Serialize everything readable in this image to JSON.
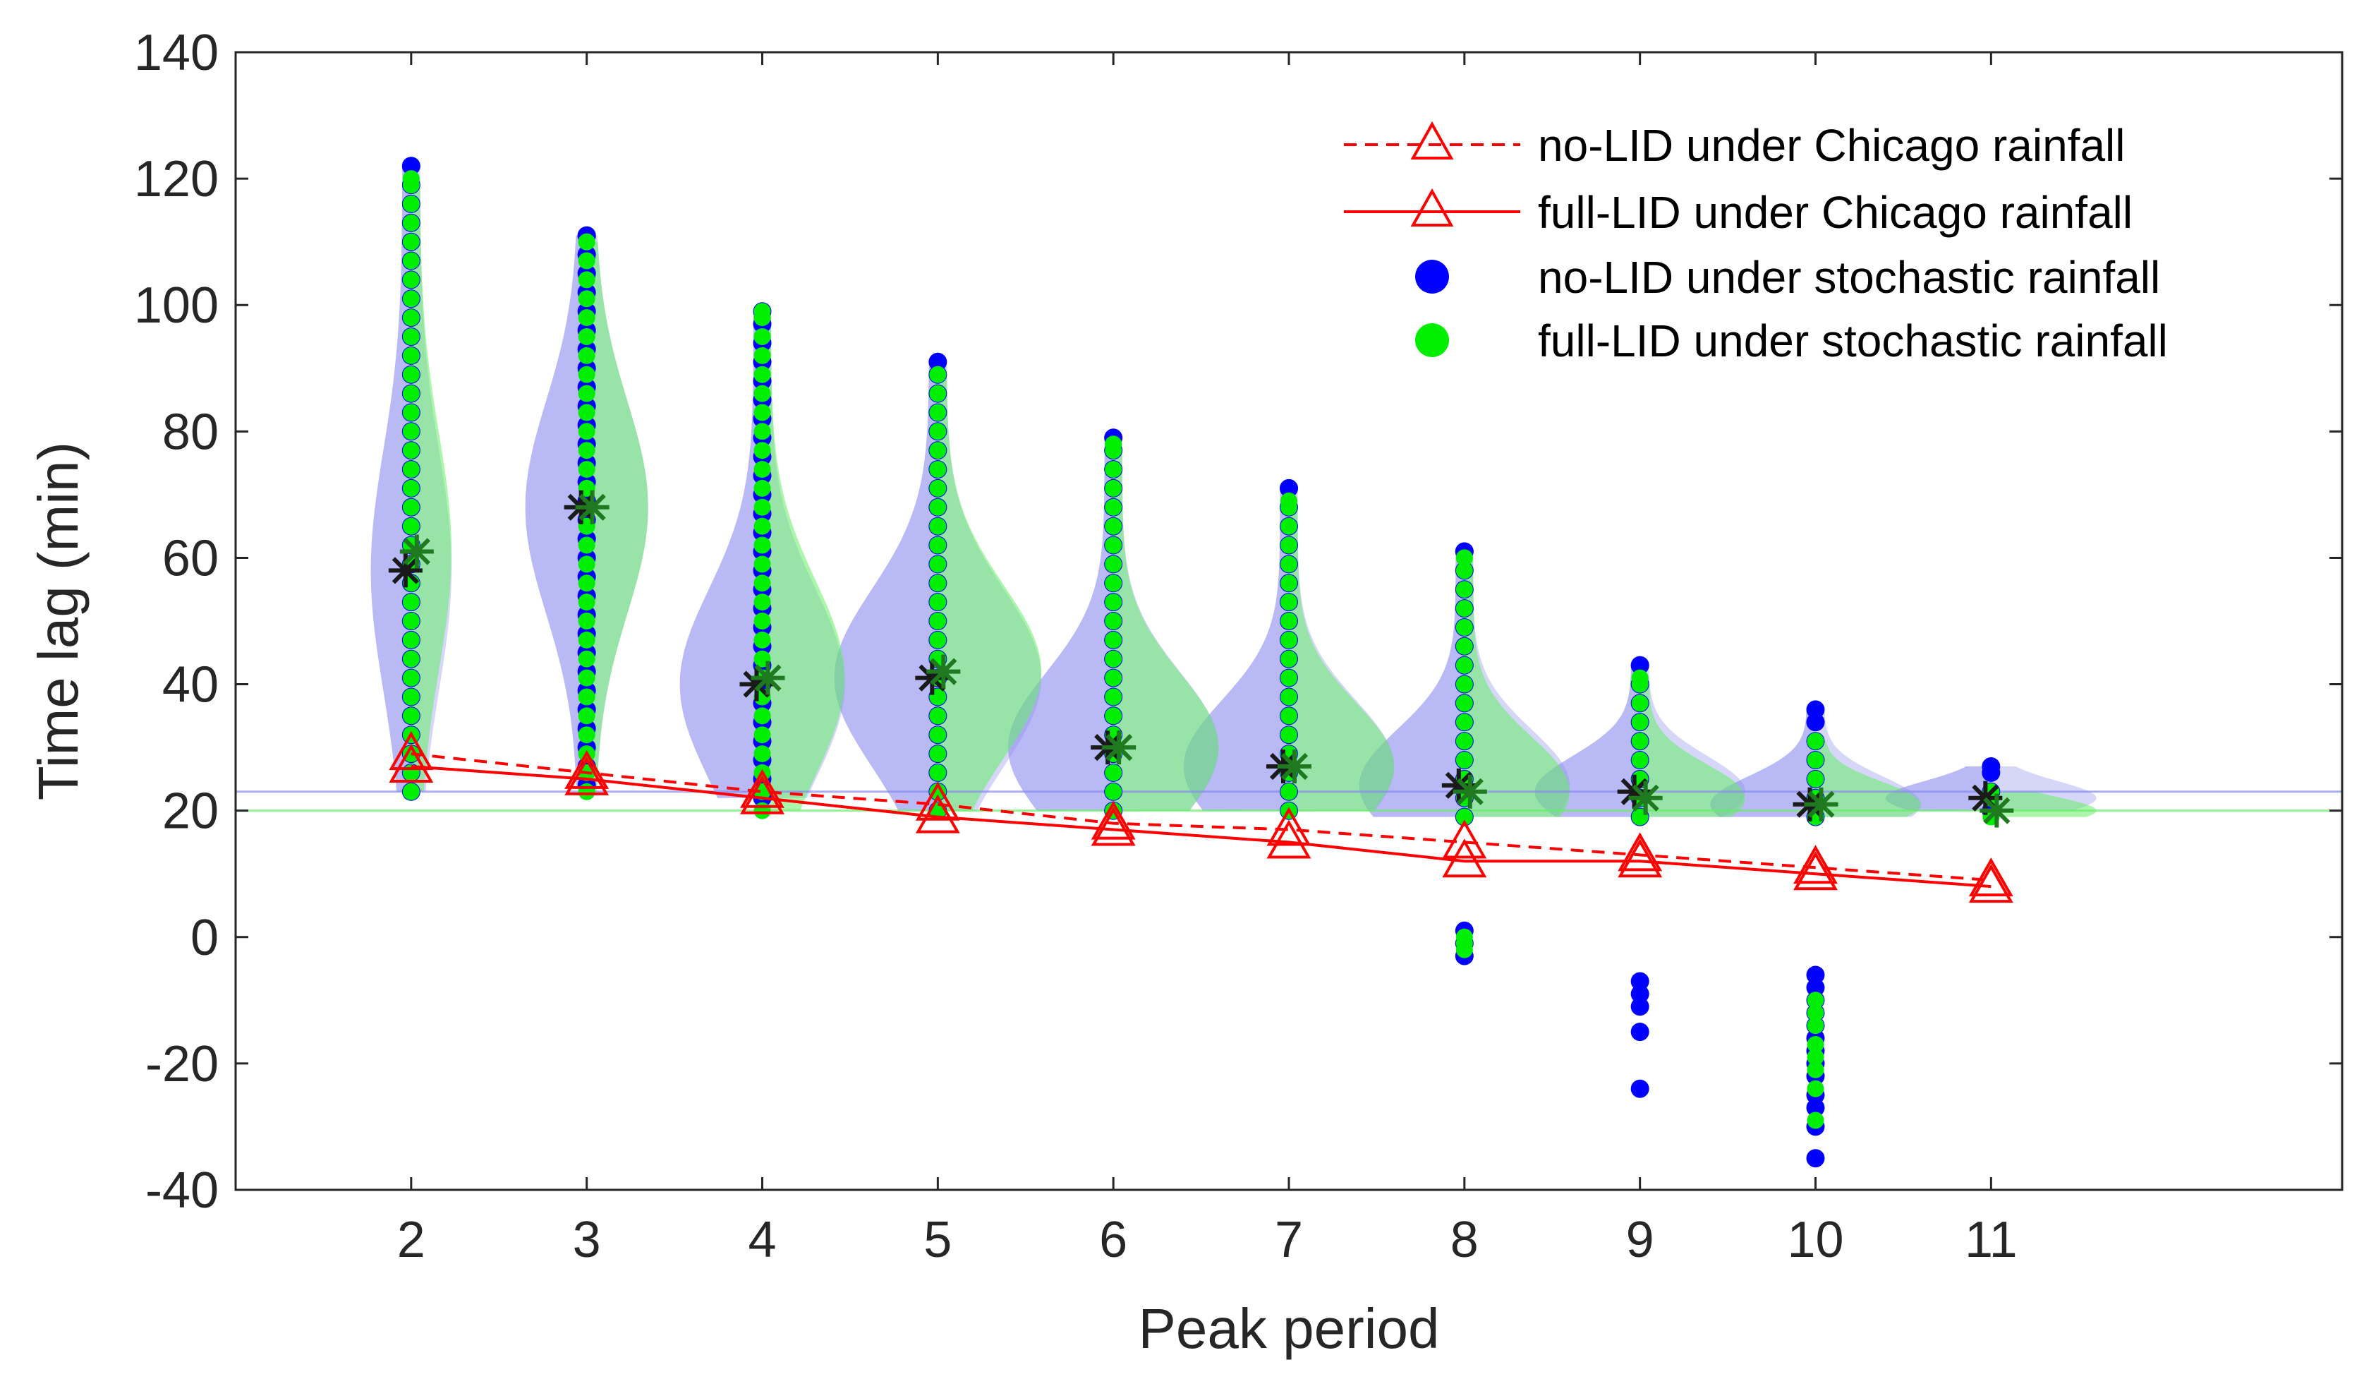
{
  "chart_data": {
    "type": "scatter",
    "xlabel": "Peak period",
    "ylabel": "Time lag (min)",
    "xlim": [
      1,
      13
    ],
    "ylim": [
      -40,
      140
    ],
    "xticks": [
      2,
      3,
      4,
      5,
      6,
      7,
      8,
      9,
      10,
      11
    ],
    "yticks": [
      -40,
      -20,
      0,
      20,
      40,
      60,
      80,
      100,
      120,
      140
    ],
    "grid": false,
    "legend_position": "top-right",
    "colors": {
      "no_lid_stochastic": "#0000ff",
      "full_lid_stochastic": "#00ee00",
      "chicago": "#ff0000",
      "violin_blue": "#8a8aee",
      "violin_green": "#66ee66",
      "median_marker": "#1f7a1f"
    },
    "series": [
      {
        "name": "no-LID under Chicago rainfall",
        "style": "dashed-line-triangle",
        "x": [
          2,
          3,
          4,
          5,
          6,
          7,
          8,
          9,
          10,
          11
        ],
        "values": [
          29,
          26,
          23,
          21,
          18,
          17,
          15,
          13,
          11,
          9
        ]
      },
      {
        "name": "full-LID under Chicago rainfall",
        "style": "solid-line-triangle",
        "x": [
          2,
          3,
          4,
          5,
          6,
          7,
          8,
          9,
          10,
          11
        ],
        "values": [
          27,
          25,
          22,
          19,
          17,
          15,
          12,
          12,
          10,
          8
        ]
      },
      {
        "name": "no-LID under stochastic rainfall",
        "style": "dots",
        "groups": [
          {
            "x": 2,
            "min": 23,
            "max": 122,
            "median": 58
          },
          {
            "x": 3,
            "min": 24,
            "max": 111,
            "median": 68
          },
          {
            "x": 4,
            "min": 22,
            "max": 99,
            "median": 40
          },
          {
            "x": 5,
            "min": 20,
            "max": 91,
            "median": 41
          },
          {
            "x": 6,
            "min": 20,
            "max": 79,
            "median": 30
          },
          {
            "x": 7,
            "min": 20,
            "max": 71,
            "median": 27
          },
          {
            "x": 8,
            "min": -3,
            "max": 61,
            "median": 24,
            "extra": [
              1,
              -1,
              -3
            ]
          },
          {
            "x": 9,
            "min": -24,
            "max": 43,
            "median": 23,
            "extra": [
              -7,
              -9,
              -11,
              -15,
              -24
            ]
          },
          {
            "x": 10,
            "min": -35,
            "max": 36,
            "median": 21,
            "extra": [
              -6,
              -8,
              -10,
              -12,
              -14,
              -16,
              -18,
              -20,
              -22,
              -25,
              -27,
              -30,
              -35
            ]
          },
          {
            "x": 11,
            "min": 20,
            "max": 27,
            "median": 22
          }
        ]
      },
      {
        "name": "full-LID under stochastic rainfall",
        "style": "dots",
        "groups": [
          {
            "x": 2,
            "min": 23,
            "max": 120,
            "median": 61
          },
          {
            "x": 3,
            "min": 23,
            "max": 110,
            "median": 68
          },
          {
            "x": 4,
            "min": 20,
            "max": 99,
            "median": 41
          },
          {
            "x": 5,
            "min": 20,
            "max": 89,
            "median": 42
          },
          {
            "x": 6,
            "min": 20,
            "max": 78,
            "median": 30
          },
          {
            "x": 7,
            "min": 20,
            "max": 69,
            "median": 27
          },
          {
            "x": 8,
            "min": -2,
            "max": 60,
            "median": 23,
            "extra": [
              0,
              -1,
              -2
            ]
          },
          {
            "x": 9,
            "min": 19,
            "max": 41,
            "median": 22
          },
          {
            "x": 10,
            "min": -29,
            "max": 31,
            "median": 21,
            "extra": [
              -10,
              -12,
              -14,
              -17,
              -19,
              -21,
              -24,
              -29
            ]
          },
          {
            "x": 11,
            "min": 19,
            "max": 23,
            "median": 20
          }
        ]
      }
    ],
    "legend": [
      "no-LID under Chicago rainfall",
      "full-LID under Chicago rainfall",
      "no-LID under stochastic rainfall",
      "full-LID under stochastic rainfall"
    ]
  }
}
